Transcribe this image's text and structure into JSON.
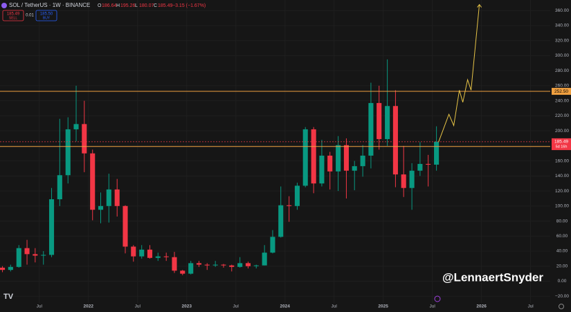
{
  "header": {
    "symbol": "SOL / TetherUS · 1W · BINANCE",
    "ohlc": [
      {
        "key": "O",
        "value": "186.64"
      },
      {
        "key": "H",
        "value": "195.26"
      },
      {
        "key": "L",
        "value": "180.07"
      },
      {
        "key": "C",
        "value": "185.49"
      }
    ],
    "change": "−3.15 (−1.67%)",
    "sell_price": "185.49",
    "sell": "SELL",
    "spread": "0.01",
    "buy_price": "185.50",
    "buy": "BUY"
  },
  "watermark": "@LennaertSnyder",
  "chart_data": {
    "type": "candlestick",
    "up_color": "#089981",
    "down_color": "#f23645",
    "grid": true,
    "x": [
      2021.125,
      2021.208,
      2021.292,
      2021.375,
      2021.458,
      2021.542,
      2021.625,
      2021.708,
      2021.792,
      2021.875,
      2021.958,
      2022.042,
      2022.125,
      2022.208,
      2022.292,
      2022.375,
      2022.458,
      2022.542,
      2022.625,
      2022.708,
      2022.792,
      2022.875,
      2022.958,
      2023.042,
      2023.125,
      2023.208,
      2023.292,
      2023.375,
      2023.458,
      2023.542,
      2023.625,
      2023.708,
      2023.792,
      2023.875,
      2023.958,
      2024.042,
      2024.125,
      2024.208,
      2024.292,
      2024.375,
      2024.458,
      2024.542,
      2024.625,
      2024.708,
      2024.792,
      2024.875,
      2024.958,
      2025.042,
      2025.125,
      2025.208,
      2025.292,
      2025.375,
      2025.458,
      2025.542
    ],
    "open": [
      18,
      15,
      19,
      44,
      36,
      34,
      35,
      109,
      141,
      202,
      209,
      170,
      95,
      100,
      122,
      100,
      46,
      33,
      42,
      31,
      33,
      32,
      14,
      10,
      24,
      22,
      21,
      22,
      21,
      19,
      24,
      20,
      21,
      38,
      59,
      101,
      100,
      127,
      202,
      130,
      167,
      146,
      181,
      147,
      153,
      167,
      237,
      189,
      233,
      142,
      124,
      147,
      156,
      155
    ],
    "high": [
      20,
      22,
      48,
      55,
      44,
      40,
      124,
      216,
      218,
      260,
      240,
      175,
      118,
      143,
      136,
      101,
      48,
      48,
      48,
      38,
      38,
      39,
      15,
      27,
      27,
      24,
      27,
      23,
      22,
      32,
      26,
      22,
      48,
      68,
      126,
      113,
      131,
      205,
      205,
      188,
      172,
      193,
      190,
      160,
      181,
      264,
      260,
      295,
      254,
      180,
      157,
      185,
      168,
      206
    ],
    "low": [
      12,
      13,
      18,
      22,
      25,
      22,
      32,
      100,
      130,
      186,
      145,
      81,
      77,
      78,
      86,
      37,
      26,
      30,
      30,
      27,
      27,
      11,
      8,
      9,
      19,
      15,
      19,
      18,
      13,
      18,
      17,
      17,
      21,
      37,
      58,
      79,
      95,
      125,
      117,
      126,
      122,
      120,
      110,
      121,
      139,
      150,
      175,
      180,
      125,
      112,
      95,
      140,
      126,
      147
    ],
    "close": [
      15,
      19,
      44,
      36,
      34,
      35,
      109,
      141,
      202,
      209,
      170,
      95,
      100,
      122,
      100,
      46,
      33,
      42,
      31,
      33,
      32,
      14,
      10,
      24,
      22,
      21,
      22,
      21,
      19,
      24,
      20,
      21,
      38,
      59,
      101,
      100,
      127,
      202,
      130,
      167,
      146,
      181,
      147,
      153,
      167,
      237,
      189,
      233,
      142,
      124,
      147,
      156,
      155,
      185.49
    ],
    "xlim": [
      2021.1,
      2026.7
    ],
    "xticks": [
      {
        "value": 2021.5,
        "label": "Jul"
      },
      2022,
      {
        "value": 2022.5,
        "label": "Jul"
      },
      2023,
      {
        "value": 2023.5,
        "label": "Jul"
      },
      2024,
      {
        "value": 2024.5,
        "label": "Jul"
      },
      2025,
      {
        "value": 2025.5,
        "label": "Jul"
      },
      2026,
      {
        "value": 2026.5,
        "label": "Jul"
      }
    ],
    "ylim": [
      -29,
      374
    ],
    "yticks": [
      {
        "value": 360,
        "label": "360.00"
      },
      {
        "value": 340,
        "label": "340.00"
      },
      {
        "value": 320,
        "label": "320.00"
      },
      {
        "value": 300,
        "label": "300.00"
      },
      {
        "value": 280,
        "label": "280.00"
      },
      {
        "value": 260,
        "label": "260.00"
      },
      {
        "value": 240,
        "label": "240.00"
      },
      {
        "value": 220,
        "label": "220.00"
      },
      {
        "value": 200,
        "label": "200.00"
      },
      {
        "value": 180,
        "label": "180.00"
      },
      {
        "value": 160,
        "label": "160.00"
      },
      {
        "value": 140,
        "label": "140.00"
      },
      {
        "value": 120,
        "label": "120.00"
      },
      {
        "value": 100,
        "label": "100.00"
      },
      {
        "value": 80,
        "label": "80.00"
      },
      {
        "value": 60,
        "label": "60.00"
      },
      {
        "value": 40,
        "label": "40.00"
      },
      {
        "value": 20,
        "label": "20.00"
      },
      {
        "value": 0,
        "label": "0.00"
      },
      {
        "value": -20,
        "label": "−20.00"
      }
    ],
    "levels": [
      {
        "value": 252.5,
        "label": "252.50",
        "color": "#f0a040"
      },
      {
        "value": 179.22,
        "label": "179.22",
        "color": "#f0a040"
      }
    ],
    "last_price": {
      "value": 185.49,
      "label": "185.49",
      "countdown": "5d 16h",
      "color": "#f23645"
    },
    "projection": {
      "color": "#e8c547",
      "x": [
        2025.563,
        2025.669,
        2025.718,
        2025.775,
        2025.81,
        2025.859,
        2025.894,
        2025.979
      ],
      "values": [
        185,
        222,
        207,
        254,
        238,
        268,
        254,
        368
      ]
    }
  }
}
